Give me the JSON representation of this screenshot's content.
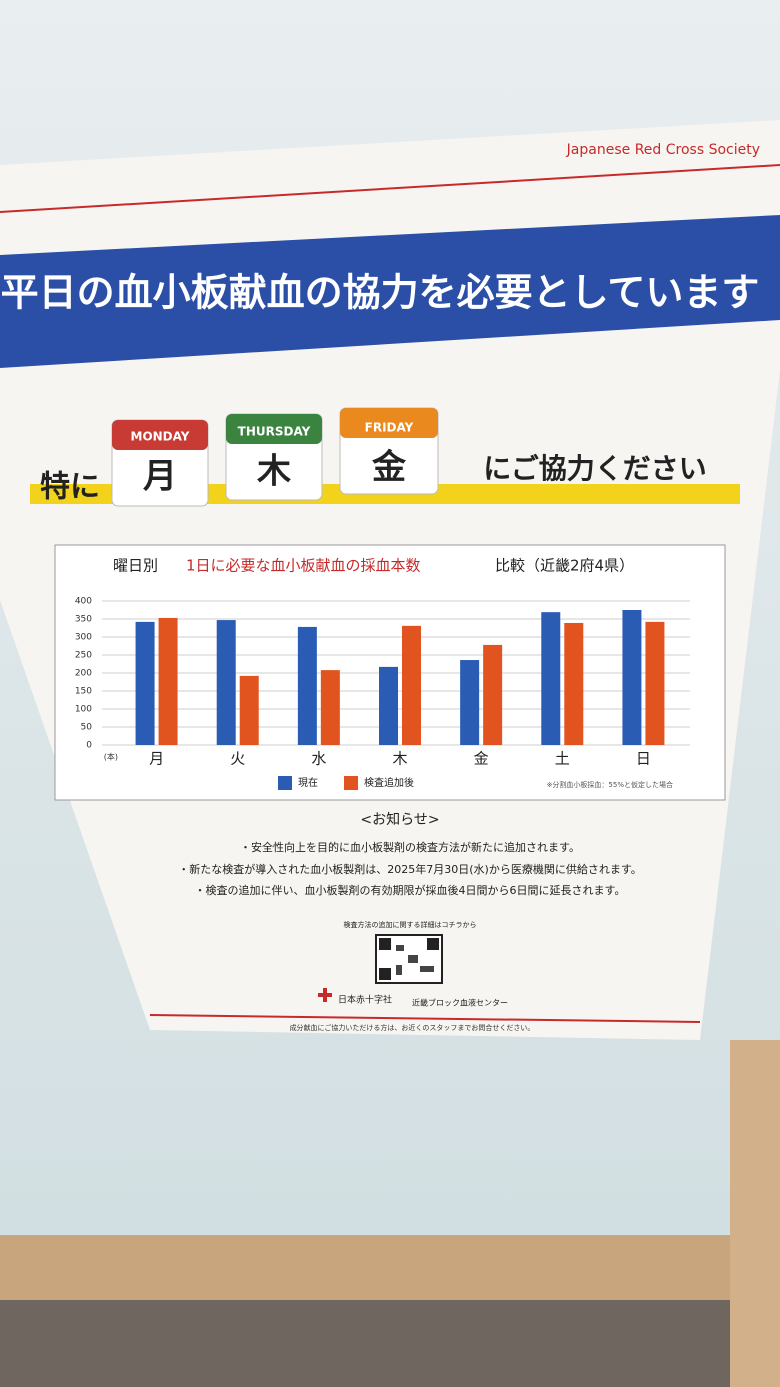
{
  "header": {
    "org": "Japanese Red Cross Society",
    "banner": "平日の血小板献血の協力を必要としています",
    "lead": "特に",
    "days": [
      {
        "en": "MONDAY",
        "jp": "月"
      },
      {
        "en": "THURSDAY",
        "jp": "木"
      },
      {
        "en": "FRIDAY",
        "jp": "金"
      }
    ],
    "tail": "にご協力ください"
  },
  "chart_data": {
    "type": "bar",
    "title_prefix": "曜日別",
    "title": "1日に必要な血小板献血の採血本数",
    "title_suffix": "比較（近畿2府4県）",
    "y_unit": "(本)",
    "note": "※分割血小板採血：55%と仮定した場合",
    "categories": [
      "月",
      "火",
      "水",
      "木",
      "金",
      "土",
      "日"
    ],
    "series": [
      {
        "name": "現在",
        "color": "#2a5cb3",
        "values": [
          342,
          347,
          328,
          217,
          236,
          369,
          375
        ]
      },
      {
        "name": "検査追加後",
        "color": "#e2541f",
        "values": [
          353,
          192,
          208,
          331,
          278,
          339,
          342
        ]
      }
    ],
    "ylim": [
      0,
      400
    ],
    "yticks": [
      0,
      50,
      100,
      150,
      200,
      250,
      300,
      350,
      400
    ],
    "grid": true
  },
  "notice": {
    "heading": "<お知らせ>",
    "items": [
      "・安全性向上を目的に血小板製剤の検査方法が新たに追加されます。",
      "・新たな検査が導入された血小板製剤は、2025年7月30日(水)から医療機関に供給されます。",
      "・検査の追加に伴い、血小板製剤の有効期限が採血後4日間から6日間に延長されます。"
    ],
    "qr_caption": "検査方法の追加に関する詳細はコチラから",
    "sender": "日本赤十字社",
    "center": "近畿ブロック血液センター",
    "footer": "成分献血にご協力いただける方は、お近くのスタッフまでお問合せください。"
  }
}
